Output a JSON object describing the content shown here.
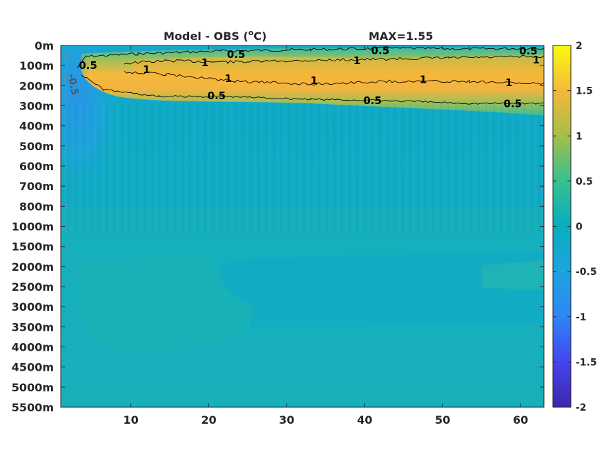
{
  "title_left": "Model - OBS (",
  "title_sup": "o",
  "title_right": "C)",
  "title_max": "MAX=1.55",
  "chart_data": {
    "type": "heatmap",
    "title": "Model - OBS (oC)",
    "annotation": "MAX=1.55",
    "x": {
      "ticks": [
        10,
        20,
        30,
        40,
        50,
        60
      ],
      "range": [
        1,
        63
      ]
    },
    "y": {
      "tick_labels": [
        "0m",
        "100m",
        "200m",
        "300m",
        "400m",
        "500m",
        "600m",
        "700m",
        "800m",
        "1000m",
        "1500m",
        "2000m",
        "2500m",
        "3000m",
        "3500m",
        "4000m",
        "4500m",
        "5000m",
        "5500m"
      ],
      "direction": "top-down depth levels"
    },
    "colorbar": {
      "range": [
        -2,
        2
      ],
      "ticks": [
        "2",
        "1.5",
        "1",
        "0.5",
        "0",
        "-0.5",
        "-1",
        "-1.5",
        "-2"
      ],
      "colormap": "parula"
    },
    "contour_levels": [
      0.5,
      1,
      -0.5
    ],
    "contour_labels": [
      {
        "text": "0.5",
        "x": 4.5,
        "y": 1.0
      },
      {
        "text": "0.5",
        "x": 23.5,
        "y": 0.45
      },
      {
        "text": "0.5",
        "x": 42,
        "y": 0.25
      },
      {
        "text": "0.5",
        "x": 61,
        "y": 0.28
      },
      {
        "text": "1",
        "x": 12,
        "y": 1.2
      },
      {
        "text": "1",
        "x": 19.5,
        "y": 0.85
      },
      {
        "text": "1",
        "x": 39,
        "y": 0.75
      },
      {
        "text": "1",
        "x": 62,
        "y": 0.72
      },
      {
        "text": "1",
        "x": 22.5,
        "y": 1.65
      },
      {
        "text": "1",
        "x": 33.5,
        "y": 1.75
      },
      {
        "text": "1",
        "x": 47.5,
        "y": 1.7
      },
      {
        "text": "1",
        "x": 58.5,
        "y": 1.85
      },
      {
        "text": "0.5",
        "x": 21,
        "y": 2.5
      },
      {
        "text": "0.5",
        "x": 41,
        "y": 2.75
      },
      {
        "text": "0.5",
        "x": 59,
        "y": 2.9
      },
      {
        "text": "-0.5",
        "x": 2.2,
        "y": 1.8
      }
    ]
  }
}
